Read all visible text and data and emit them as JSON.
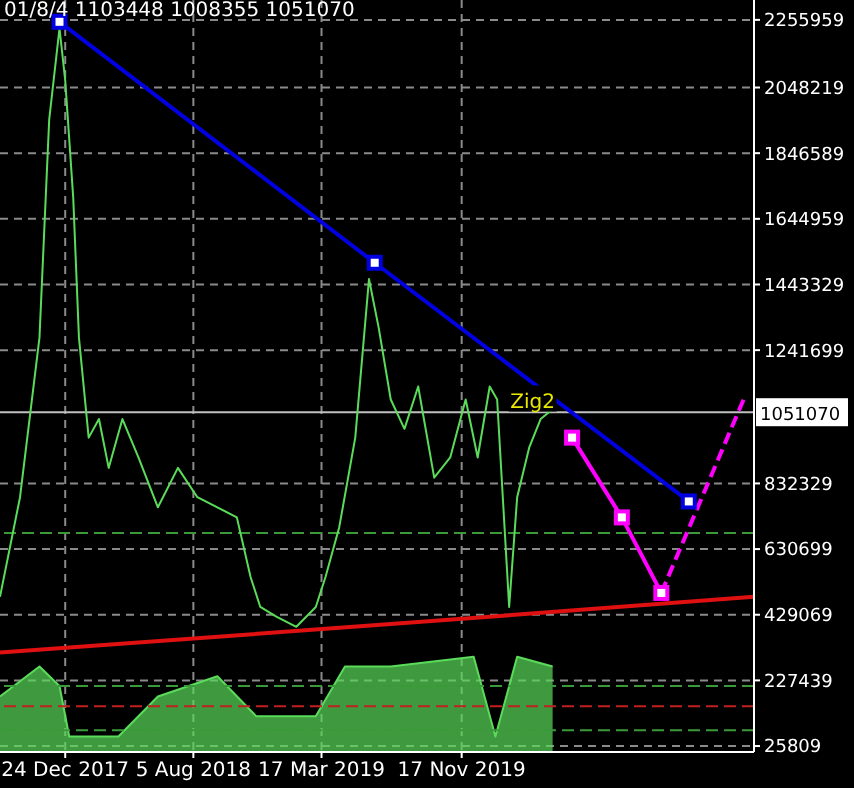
{
  "chart_data": {
    "type": "line",
    "annotations": [
      "01/8/4 1103448 1008355 1051070",
      {
        "text": "Zig2",
        "x": "2020-03-20",
        "y": 1090000
      }
    ],
    "xlim": [
      "2017-09-01",
      "2021-04-11"
    ],
    "xticks": [
      {
        "value": "2017-12-24",
        "label": "24 Dec 2017"
      },
      {
        "value": "2018-08-05",
        "label": "5 Aug 2018"
      },
      {
        "value": "2019-03-17",
        "label": "17 Mar 2019"
      },
      {
        "value": "2019-11-17",
        "label": "17 Nov 2019"
      }
    ],
    "ylim": [
      7500,
      2317000
    ],
    "yticks": [
      25809,
      227439,
      429069,
      630699,
      832329,
      1241699,
      1443329,
      1644959,
      1846589,
      2048219,
      2255959
    ],
    "grid": true,
    "legend": false,
    "ref_lines": [
      {
        "axis": "y",
        "value": 1051070,
        "label": "1051070",
        "color": "#c0c0c0"
      },
      {
        "axis": "y",
        "value": 680000,
        "color": "#3a9a3a",
        "line_style": "dashed"
      },
      {
        "axis": "y",
        "value": 210000,
        "color": "#3a9a3a",
        "line_style": "dashed"
      },
      {
        "axis": "y",
        "value": 148000,
        "color": "#c02020",
        "line_style": "dashed"
      },
      {
        "axis": "y",
        "value": 74000,
        "color": "#3a9a3a",
        "line_style": "dashed"
      }
    ],
    "series": [
      {
        "color": "#5adc5a",
        "marker": "none",
        "x": [
          "2017-09-01",
          "2017-10-06",
          "2017-11-09",
          "2017-11-26",
          "2017-12-14",
          "2017-12-24",
          "2018-01-07",
          "2018-01-17",
          "2018-02-03",
          "2018-02-21",
          "2018-03-10",
          "2018-04-03",
          "2018-05-01",
          "2018-06-04",
          "2018-07-09",
          "2018-08-12",
          "2018-09-16",
          "2018-10-20",
          "2018-11-13",
          "2018-11-30",
          "2018-12-28",
          "2019-02-01",
          "2019-03-07",
          "2019-03-24",
          "2019-04-17",
          "2019-05-15",
          "2019-06-08",
          "2019-06-25",
          "2019-07-16",
          "2019-08-09",
          "2019-09-02",
          "2019-09-30",
          "2019-10-28",
          "2019-11-24",
          "2019-12-15",
          "2020-01-05",
          "2020-01-18",
          "2020-02-08",
          "2020-02-22",
          "2020-03-14",
          "2020-04-03",
          "2020-04-24"
        ],
        "values": [
          484000,
          790000,
          1280000,
          1950000,
          2230000,
          2070000,
          1710000,
          1280000,
          973000,
          1030000,
          880000,
          1030000,
          912000,
          759000,
          880000,
          790000,
          759000,
          728000,
          545000,
          453000,
          423000,
          392000,
          453000,
          545000,
          698000,
          973000,
          1460000,
          1310000,
          1090000,
          1000000,
          1130000,
          850000,
          912000,
          1090000,
          912000,
          1130000,
          1090000,
          453000,
          790000,
          942000,
          1030000,
          1060000
        ]
      },
      {
        "type": "area",
        "color": "#5adc5a",
        "marker": "none",
        "x": [
          "2017-09-01",
          "2017-11-09",
          "2017-12-14",
          "2017-12-31",
          "2018-03-27",
          "2018-06-04",
          "2018-09-16",
          "2018-11-23",
          "2019-03-07",
          "2019-04-27",
          "2019-07-16",
          "2019-12-08",
          "2020-01-15",
          "2020-02-22",
          "2020-04-24"
        ],
        "values": [
          178000,
          270000,
          210000,
          55000,
          55000,
          178000,
          240000,
          117000,
          117000,
          270000,
          270000,
          300000,
          55000,
          300000,
          270000
        ]
      },
      {
        "type": "line",
        "color": "#0000e0",
        "marker": "square",
        "x": [
          "2017-12-14",
          "2019-06-18",
          "2020-12-18"
        ],
        "values": [
          2250000,
          1510000,
          777000
        ]
      },
      {
        "type": "line",
        "color": "#e01010",
        "marker": "none",
        "x": [
          "2017-09-01",
          "2019-06-28",
          "2021-04-11"
        ],
        "values": [
          313000,
          398000,
          484000
        ]
      },
      {
        "type": "line",
        "color": "#ff00ff",
        "marker": "square",
        "x": [
          "2020-05-28",
          "2020-08-23",
          "2020-10-31"
        ],
        "values": [
          973000,
          728000,
          496000
        ]
      },
      {
        "type": "line",
        "color": "#ff00ff",
        "marker": "none",
        "line_style": "dashed",
        "x": [
          "2020-10-31",
          "2021-03-25"
        ],
        "values": [
          496000,
          1095000
        ]
      }
    ]
  }
}
